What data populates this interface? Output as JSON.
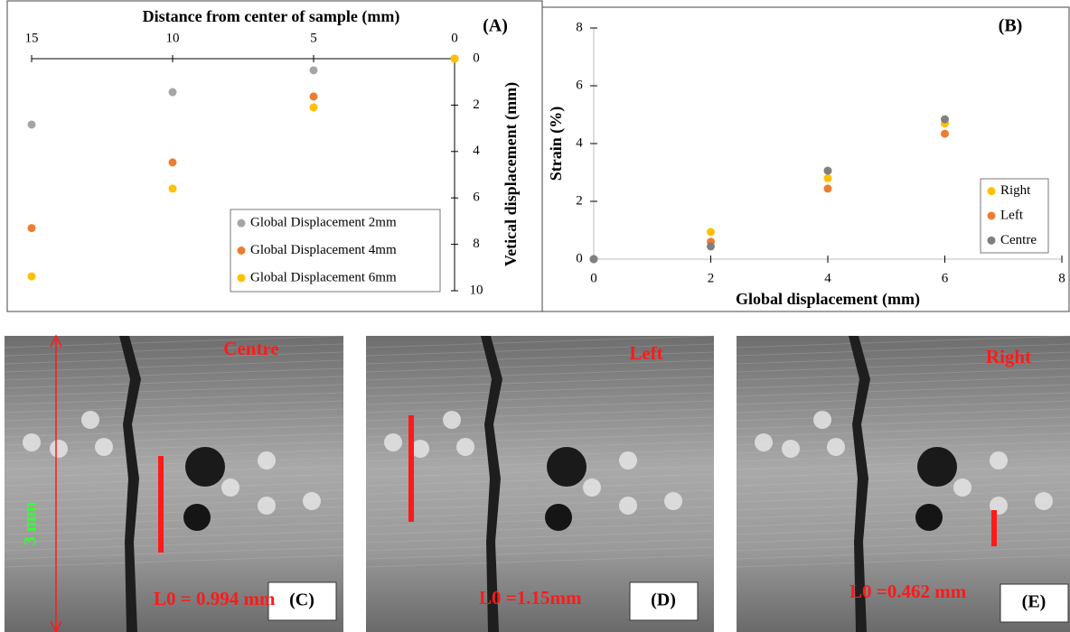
{
  "chart_data": [
    {
      "type": "scatter",
      "panel": "(A)",
      "x_label": "Distance from center of sample (mm)",
      "y_label": "Vetical displacement (mm)",
      "x": [
        15,
        10,
        5,
        0
      ],
      "xlim": [
        15,
        0
      ],
      "xticks": [
        15,
        10,
        5,
        0
      ],
      "ylim": [
        10,
        0
      ],
      "yticks": [
        0,
        2,
        4,
        6,
        8,
        10
      ],
      "legend": "lower right",
      "series": [
        {
          "name": "Global Displacement 2mm",
          "color": "#a5a5a5",
          "values": [
            2.84,
            1.44,
            0.5,
            0
          ]
        },
        {
          "name": "Global Displacement 4mm",
          "color": "#ed7d31",
          "values": [
            7.3,
            4.47,
            1.63,
            0
          ]
        },
        {
          "name": "Global Displacement 6mm",
          "color": "#ffc000",
          "values": [
            9.38,
            5.6,
            2.1,
            0
          ]
        }
      ]
    },
    {
      "type": "scatter",
      "panel": "(B)",
      "x_label": "Global displacement (mm)",
      "y_label": "Strain (%)",
      "x": [
        0,
        2,
        4,
        6
      ],
      "xlim": [
        0,
        8
      ],
      "xticks": [
        0,
        2,
        4,
        6,
        8
      ],
      "ylim": [
        0,
        8
      ],
      "yticks": [
        0,
        2,
        4,
        6,
        8
      ],
      "legend": "lower right",
      "series": [
        {
          "name": "Right",
          "color": "#ffc000",
          "values": [
            0,
            0.94,
            2.8,
            4.7
          ]
        },
        {
          "name": "Left",
          "color": "#ed7d31",
          "values": [
            0,
            0.6,
            2.44,
            4.34
          ]
        },
        {
          "name": "Centre",
          "color": "#7f7f7f",
          "values": [
            0,
            0.44,
            3.06,
            4.84
          ]
        }
      ]
    }
  ],
  "images": [
    {
      "title": "Centre",
      "panel": "(C)",
      "caption": "L0 = 0.994 mm",
      "scale": "3 mm"
    },
    {
      "title": "Left",
      "panel": "(D)",
      "caption": "L0 =1.15mm"
    },
    {
      "title": "Right",
      "panel": "(E)",
      "caption": "L0 =0.462 mm"
    }
  ]
}
